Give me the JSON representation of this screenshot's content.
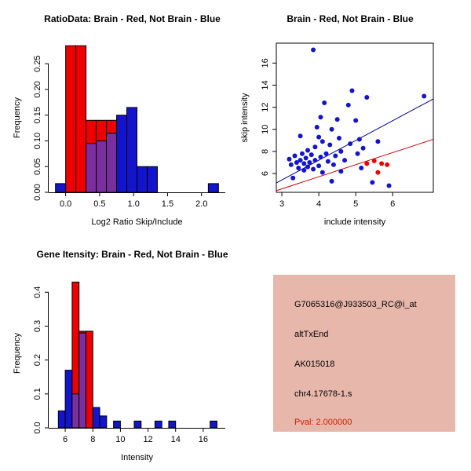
{
  "window": {
    "background": "#FFFFFF"
  },
  "colors": {
    "red": "#EE0000",
    "blue": "#1414CC",
    "purple": "#7B2F9E",
    "line_blue": "#00008B",
    "line_red": "#CC0000",
    "info_box_bg": "#E8B7AC",
    "pval": "#CC2200",
    "text": "#000000"
  },
  "chart_data": [
    {
      "type": "bar",
      "panel": "top-left",
      "title": "RatioData: Brain - Red, Not Brain - Blue",
      "xlabel": "Log2 Ratio Skip/Include",
      "ylabel": "Frequency",
      "xlim": [
        -0.25,
        2.35
      ],
      "ylim": [
        0,
        0.29
      ],
      "grid": false,
      "legend": "none",
      "xticks": {
        "values": [
          0,
          0.5,
          1,
          1.5,
          2
        ],
        "labels": [
          "0.0",
          "0.5",
          "1.0",
          "1.5",
          "2.0"
        ]
      },
      "yticks": {
        "values": [
          0,
          0.05,
          0.1,
          0.15,
          0.2,
          0.25
        ],
        "labels": [
          "0.00",
          "0.05",
          "0.10",
          "0.15",
          "0.20",
          "0.25"
        ]
      },
      "series": [
        {
          "name": "Brain",
          "color_key": "red",
          "bars": [
            {
              "x0": 0.0,
              "x1": 0.15,
              "h": 0.285
            },
            {
              "x0": 0.15,
              "x1": 0.3,
              "h": 0.285
            },
            {
              "x0": 0.3,
              "x1": 0.45,
              "h": 0.14
            },
            {
              "x0": 0.45,
              "x1": 0.6,
              "h": 0.14
            },
            {
              "x0": 0.6,
              "x1": 0.75,
              "h": 0.14
            }
          ]
        },
        {
          "name": "Not Brain",
          "color_key": "blue",
          "bars": [
            {
              "x0": -0.15,
              "x1": 0.0,
              "h": 0.017
            },
            {
              "x0": 0.3,
              "x1": 0.45,
              "h": 0.095
            },
            {
              "x0": 0.45,
              "x1": 0.6,
              "h": 0.1
            },
            {
              "x0": 0.6,
              "x1": 0.75,
              "h": 0.115
            },
            {
              "x0": 0.75,
              "x1": 0.9,
              "h": 0.15
            },
            {
              "x0": 0.9,
              "x1": 1.05,
              "h": 0.165
            },
            {
              "x0": 1.05,
              "x1": 1.2,
              "h": 0.05
            },
            {
              "x0": 1.2,
              "x1": 1.35,
              "h": 0.05
            },
            {
              "x0": 2.1,
              "x1": 2.25,
              "h": 0.017
            }
          ]
        }
      ]
    },
    {
      "type": "scatter",
      "panel": "top-right",
      "title": "Brain - Red, Not Brain - Blue",
      "xlabel": "include intensity",
      "ylabel": "skip intensity",
      "xlim": [
        2.85,
        7.1
      ],
      "ylim": [
        4.3,
        17.8
      ],
      "grid": false,
      "legend": "none",
      "xticks": {
        "values": [
          3,
          4,
          5,
          6
        ],
        "labels": [
          "3",
          "4",
          "5",
          "6"
        ]
      },
      "yticks": {
        "values": [
          6,
          8,
          10,
          12,
          14,
          16
        ],
        "labels": [
          "6",
          "8",
          "10",
          "12",
          "14",
          "16"
        ]
      },
      "series": [
        {
          "name": "Not Brain",
          "color_key": "blue",
          "points": [
            [
              3.2,
              7.3
            ],
            [
              3.25,
              6.8
            ],
            [
              3.3,
              5.6
            ],
            [
              3.35,
              7.6
            ],
            [
              3.4,
              7.0
            ],
            [
              3.45,
              6.5
            ],
            [
              3.5,
              9.4
            ],
            [
              3.5,
              7.2
            ],
            [
              3.55,
              7.8
            ],
            [
              3.6,
              6.9
            ],
            [
              3.6,
              6.3
            ],
            [
              3.65,
              7.4
            ],
            [
              3.7,
              8.1
            ],
            [
              3.7,
              6.6
            ],
            [
              3.75,
              7.0
            ],
            [
              3.8,
              7.7
            ],
            [
              3.85,
              17.2
            ],
            [
              3.85,
              6.4
            ],
            [
              3.9,
              8.4
            ],
            [
              3.9,
              7.2
            ],
            [
              3.95,
              10.2
            ],
            [
              4.0,
              9.3
            ],
            [
              4.0,
              6.7
            ],
            [
              4.05,
              11.1
            ],
            [
              4.05,
              7.5
            ],
            [
              4.1,
              8.9
            ],
            [
              4.1,
              6.1
            ],
            [
              4.15,
              12.4
            ],
            [
              4.2,
              7.8
            ],
            [
              4.25,
              7.1
            ],
            [
              4.3,
              8.6
            ],
            [
              4.35,
              10.0
            ],
            [
              4.35,
              5.3
            ],
            [
              4.4,
              6.8
            ],
            [
              4.45,
              7.6
            ],
            [
              4.5,
              10.9
            ],
            [
              4.55,
              9.2
            ],
            [
              4.6,
              8.0
            ],
            [
              4.6,
              6.2
            ],
            [
              4.7,
              7.2
            ],
            [
              4.8,
              12.2
            ],
            [
              4.85,
              8.7
            ],
            [
              4.9,
              13.5
            ],
            [
              5.0,
              10.8
            ],
            [
              5.05,
              7.8
            ],
            [
              5.1,
              9.1
            ],
            [
              5.15,
              6.5
            ],
            [
              5.2,
              8.3
            ],
            [
              5.3,
              12.9
            ],
            [
              5.45,
              5.2
            ],
            [
              5.6,
              8.9
            ],
            [
              5.9,
              4.9
            ],
            [
              6.85,
              13.0
            ]
          ]
        },
        {
          "name": "Brain",
          "color_key": "red",
          "points": [
            [
              5.3,
              6.9
            ],
            [
              5.5,
              7.15
            ],
            [
              5.6,
              6.1
            ],
            [
              5.7,
              6.9
            ],
            [
              5.85,
              6.8
            ]
          ]
        }
      ],
      "fit_lines": [
        {
          "name": "not-brain-fit",
          "color_key": "line_blue",
          "x0": 2.85,
          "y0": 5.15,
          "x1": 7.1,
          "y1": 12.75
        },
        {
          "name": "brain-fit",
          "color_key": "line_red",
          "x0": 2.85,
          "y0": 4.45,
          "x1": 7.1,
          "y1": 9.1
        }
      ]
    },
    {
      "type": "bar",
      "panel": "bottom-left",
      "title": "Gene Itensity: Brain - Red, Not Brain - Blue",
      "xlabel": "Intensity",
      "ylabel": "Frequency",
      "xlim": [
        4.8,
        17.6
      ],
      "ylim": [
        0,
        0.44
      ],
      "grid": false,
      "legend": "none",
      "xticks": {
        "values": [
          6,
          8,
          10,
          12,
          14,
          16
        ],
        "labels": [
          "6",
          "8",
          "10",
          "12",
          "14",
          "16"
        ]
      },
      "yticks": {
        "values": [
          0,
          0.1,
          0.2,
          0.3,
          0.4
        ],
        "labels": [
          "0.0",
          "0.1",
          "0.2",
          "0.3",
          "0.4"
        ]
      },
      "series": [
        {
          "name": "Brain",
          "color_key": "red",
          "bars": [
            {
              "x0": 6.5,
              "x1": 7.0,
              "h": 0.43
            },
            {
              "x0": 7.0,
              "x1": 7.5,
              "h": 0.285
            },
            {
              "x0": 7.5,
              "x1": 8.0,
              "h": 0.285
            }
          ]
        },
        {
          "name": "Not Brain",
          "color_key": "blue",
          "bars": [
            {
              "x0": 5.5,
              "x1": 6.0,
              "h": 0.05
            },
            {
              "x0": 6.0,
              "x1": 6.5,
              "h": 0.17
            },
            {
              "x0": 6.5,
              "x1": 7.0,
              "h": 0.1
            },
            {
              "x0": 7.0,
              "x1": 7.5,
              "h": 0.28
            },
            {
              "x0": 8.0,
              "x1": 8.5,
              "h": 0.06
            },
            {
              "x0": 8.5,
              "x1": 9.0,
              "h": 0.035
            },
            {
              "x0": 9.5,
              "x1": 10.0,
              "h": 0.02
            },
            {
              "x0": 11.0,
              "x1": 11.5,
              "h": 0.02
            },
            {
              "x0": 12.5,
              "x1": 13.0,
              "h": 0.02
            },
            {
              "x0": 13.5,
              "x1": 14.0,
              "h": 0.02
            },
            {
              "x0": 16.5,
              "x1": 17.0,
              "h": 0.02
            }
          ]
        }
      ]
    }
  ],
  "info_panel": {
    "lines": [
      "G7065316@J933503_RC@i_at",
      "altTxEnd",
      "AK015018",
      "chr4.17678-1.s"
    ],
    "pval_label": "Pval: 2.000000"
  }
}
